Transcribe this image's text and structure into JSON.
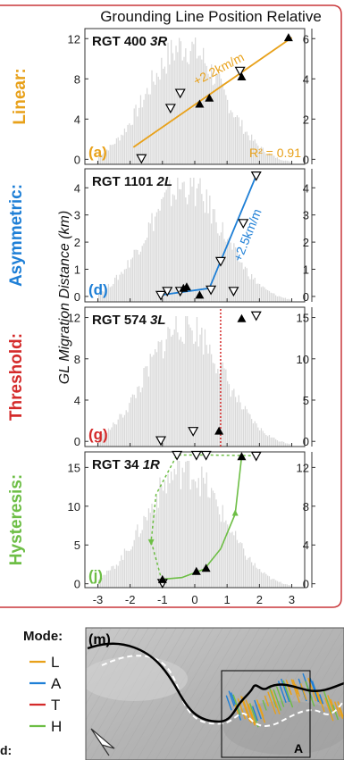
{
  "header": {
    "title": "Grounding Line Position Relative"
  },
  "y_axis_label": "GL Migration Distance (km)",
  "shared_x_ticks": [
    "-3",
    "-2",
    "-1",
    "0",
    "1",
    "2",
    "3"
  ],
  "colors": {
    "linear": "#E8A11A",
    "asymmetric": "#1E7FD6",
    "threshold": "#D42A2A",
    "hysteresis": "#6DBE45",
    "hist": "#D9D9D9",
    "border": "#C9373A"
  },
  "chart_data": [
    {
      "type": "scatter",
      "id": "linear",
      "side_label": "Linear:",
      "title_main": "RGT 400",
      "title_track": "3R",
      "panel_letter": "(a)",
      "rate_label": "+2.2km/m",
      "r2_label": "R² = 0.91",
      "xlim": [
        -3.4,
        3.4
      ],
      "ylim": [
        -0.5,
        13
      ],
      "left_ticks": [
        0,
        4,
        8,
        12
      ],
      "right_ticks": [
        0,
        2,
        4,
        6
      ],
      "open_triangles": [
        [
          -1.65,
          0.1
        ],
        [
          -0.75,
          5.1
        ],
        [
          -0.45,
          6.6
        ],
        [
          1.4,
          8.8
        ]
      ],
      "filled_triangles": [
        [
          0.15,
          5.5
        ],
        [
          0.45,
          6.1
        ],
        [
          1.45,
          8.2
        ],
        [
          2.9,
          12.1
        ]
      ],
      "fit_line": [
        [
          -1.9,
          1.2
        ],
        [
          3.0,
          12.1
        ]
      ]
    },
    {
      "type": "scatter",
      "id": "asymmetric",
      "side_label": "Asymmetric:",
      "title_main": "RGT 1101",
      "title_track": "2L",
      "panel_letter": "(d)",
      "rate_label": "+2.5km/m",
      "xlim": [
        -3.4,
        3.4
      ],
      "ylim": [
        -0.2,
        4.7
      ],
      "left_ticks": [
        0,
        1,
        2,
        3,
        4
      ],
      "right_ticks": [
        0,
        1,
        2,
        3,
        4
      ],
      "open_triangles": [
        [
          -1.05,
          0.05
        ],
        [
          -0.85,
          0.2
        ],
        [
          -0.45,
          0.2
        ],
        [
          0.5,
          0.25
        ],
        [
          0.8,
          1.3
        ],
        [
          1.2,
          0.2
        ],
        [
          1.5,
          2.7
        ],
        [
          1.9,
          4.45
        ]
      ],
      "filled_triangles": [
        [
          -0.35,
          0.3
        ],
        [
          -0.25,
          0.35
        ],
        [
          0.15,
          0.05
        ]
      ],
      "fit_line": [
        [
          -1.05,
          0.05
        ],
        [
          0.45,
          0.3
        ],
        [
          1.9,
          4.45
        ]
      ]
    },
    {
      "type": "scatter",
      "id": "threshold",
      "side_label": "Threshold:",
      "title_main": "RGT 574",
      "title_track": "3L",
      "panel_letter": "(g)",
      "xlim": [
        -3.4,
        3.4
      ],
      "ylim": [
        -0.5,
        13
      ],
      "left_ticks": [
        0,
        4,
        8,
        12
      ],
      "right_ticks": [
        0,
        5,
        10,
        15
      ],
      "threshold_x": 0.8,
      "open_triangles": [
        [
          -1.05,
          0.1
        ],
        [
          -0.05,
          1.0
        ],
        [
          1.9,
          12.2
        ]
      ],
      "filled_triangles": [
        [
          0.75,
          1.0
        ],
        [
          1.45,
          11.9
        ]
      ]
    },
    {
      "type": "scatter",
      "id": "hysteresis",
      "side_label": "Hysteresis:",
      "title_main": "RGT 34",
      "title_track": "1R",
      "panel_letter": "(j)",
      "xlim": [
        -3.4,
        3.4
      ],
      "ylim": [
        -0.5,
        17
      ],
      "left_ticks": [
        0,
        5,
        10,
        15
      ],
      "right_ticks": [
        0,
        4,
        8,
        12
      ],
      "open_triangles": [
        [
          -1.0,
          0.1
        ],
        [
          -0.55,
          16.6
        ],
        [
          0.05,
          16.6
        ],
        [
          0.35,
          16.6
        ],
        [
          1.9,
          16.5
        ]
      ],
      "filled_triangles": [
        [
          -1.0,
          0.55
        ],
        [
          0.05,
          1.6
        ],
        [
          0.35,
          2.0
        ],
        [
          1.45,
          16.4
        ]
      ],
      "solid_path": [
        [
          -0.95,
          0.6
        ],
        [
          -0.4,
          0.8
        ],
        [
          0.3,
          1.9
        ],
        [
          0.8,
          4.5
        ],
        [
          1.25,
          9.0
        ],
        [
          1.45,
          16.4
        ]
      ],
      "dashed_path": [
        [
          1.9,
          16.5
        ],
        [
          0.35,
          16.6
        ],
        [
          -0.55,
          16.6
        ],
        [
          -1.2,
          11.5
        ],
        [
          -1.35,
          5.5
        ],
        [
          -1.0,
          0.1
        ]
      ]
    }
  ],
  "legend": {
    "title": "Mode:",
    "items": [
      {
        "label": "L",
        "color": "#E8A11A"
      },
      {
        "label": "A",
        "color": "#1E7FD6"
      },
      {
        "label": "T",
        "color": "#D42A2A"
      },
      {
        "label": "H",
        "color": "#6DBE45"
      }
    ],
    "cut_off_label": "d:"
  },
  "map": {
    "panel_letter": "(m)",
    "inset_label": "A"
  }
}
